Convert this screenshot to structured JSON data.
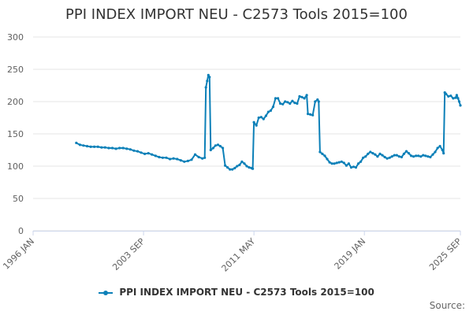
{
  "chart_data": {
    "type": "line",
    "title": "PPI INDEX IMPORT NEU - C2573 Tools 2015=100",
    "xlabel": "",
    "ylabel": "",
    "x_tick_labels": [
      "1996 JAN",
      "2003 SEP",
      "2011 MAY",
      "2019 JAN",
      "2025 SEP"
    ],
    "x_range": [
      "1996-01",
      "2025-09"
    ],
    "ylim": [
      0,
      300
    ],
    "y_ticks": [
      0,
      50,
      100,
      150,
      200,
      250,
      300
    ],
    "grid": true,
    "legend_position": "bottom",
    "source_label": "Source:",
    "colors": {
      "series": "#0c80b8",
      "grid": "#e6e6e6"
    },
    "series": [
      {
        "name": "PPI INDEX IMPORT NEU - C2573 Tools 2015=100",
        "points": [
          [
            "1999-01",
            136
          ],
          [
            "1999-04",
            133
          ],
          [
            "1999-07",
            132
          ],
          [
            "1999-10",
            131
          ],
          [
            "2000-01",
            130
          ],
          [
            "2000-04",
            130
          ],
          [
            "2000-07",
            130
          ],
          [
            "2000-10",
            129
          ],
          [
            "2001-01",
            129
          ],
          [
            "2001-04",
            128
          ],
          [
            "2001-07",
            128
          ],
          [
            "2001-10",
            127
          ],
          [
            "2002-01",
            128
          ],
          [
            "2002-04",
            128
          ],
          [
            "2002-07",
            127
          ],
          [
            "2002-10",
            126
          ],
          [
            "2003-01",
            124
          ],
          [
            "2003-04",
            123
          ],
          [
            "2003-07",
            121
          ],
          [
            "2003-10",
            119
          ],
          [
            "2004-01",
            120
          ],
          [
            "2004-04",
            118
          ],
          [
            "2004-07",
            116
          ],
          [
            "2004-10",
            114
          ],
          [
            "2005-01",
            113
          ],
          [
            "2005-04",
            113
          ],
          [
            "2005-07",
            111
          ],
          [
            "2005-10",
            112
          ],
          [
            "2006-01",
            111
          ],
          [
            "2006-04",
            109
          ],
          [
            "2006-07",
            107
          ],
          [
            "2006-10",
            108
          ],
          [
            "2007-01",
            110
          ],
          [
            "2007-04",
            118
          ],
          [
            "2007-07",
            114
          ],
          [
            "2007-10",
            112
          ],
          [
            "2007-12",
            113
          ],
          [
            "2008-01",
            222
          ],
          [
            "2008-02",
            232
          ],
          [
            "2008-03",
            241
          ],
          [
            "2008-04",
            238
          ],
          [
            "2008-05",
            125
          ],
          [
            "2008-07",
            128
          ],
          [
            "2008-09",
            132
          ],
          [
            "2008-11",
            133
          ],
          [
            "2009-01",
            131
          ],
          [
            "2009-03",
            128
          ],
          [
            "2009-05",
            101
          ],
          [
            "2009-07",
            98
          ],
          [
            "2009-09",
            95
          ],
          [
            "2009-11",
            95
          ],
          [
            "2010-01",
            97
          ],
          [
            "2010-03",
            100
          ],
          [
            "2010-05",
            102
          ],
          [
            "2010-07",
            107
          ],
          [
            "2010-09",
            104
          ],
          [
            "2010-11",
            100
          ],
          [
            "2011-01",
            98
          ],
          [
            "2011-03",
            97
          ],
          [
            "2011-04",
            96
          ],
          [
            "2011-05",
            168
          ],
          [
            "2011-07",
            163
          ],
          [
            "2011-09",
            175
          ],
          [
            "2011-11",
            176
          ],
          [
            "2012-01",
            173
          ],
          [
            "2012-03",
            178
          ],
          [
            "2012-05",
            184
          ],
          [
            "2012-07",
            186
          ],
          [
            "2012-09",
            192
          ],
          [
            "2012-11",
            205
          ],
          [
            "2013-01",
            205
          ],
          [
            "2013-03",
            197
          ],
          [
            "2013-05",
            196
          ],
          [
            "2013-07",
            200
          ],
          [
            "2013-09",
            199
          ],
          [
            "2013-11",
            197
          ],
          [
            "2014-01",
            201
          ],
          [
            "2014-03",
            198
          ],
          [
            "2014-05",
            197
          ],
          [
            "2014-07",
            208
          ],
          [
            "2014-09",
            207
          ],
          [
            "2014-11",
            205
          ],
          [
            "2015-01",
            210
          ],
          [
            "2015-02",
            181
          ],
          [
            "2015-04",
            180
          ],
          [
            "2015-06",
            179
          ],
          [
            "2015-08",
            200
          ],
          [
            "2015-10",
            203
          ],
          [
            "2015-11",
            200
          ],
          [
            "2015-12",
            122
          ],
          [
            "2016-02",
            119
          ],
          [
            "2016-04",
            116
          ],
          [
            "2016-06",
            111
          ],
          [
            "2016-08",
            106
          ],
          [
            "2016-10",
            104
          ],
          [
            "2016-12",
            104
          ],
          [
            "2017-02",
            105
          ],
          [
            "2017-04",
            106
          ],
          [
            "2017-06",
            107
          ],
          [
            "2017-08",
            105
          ],
          [
            "2017-10",
            101
          ],
          [
            "2017-12",
            104
          ],
          [
            "2018-02",
            98
          ],
          [
            "2018-04",
            99
          ],
          [
            "2018-06",
            98
          ],
          [
            "2018-08",
            104
          ],
          [
            "2018-10",
            107
          ],
          [
            "2018-12",
            113
          ],
          [
            "2019-02",
            115
          ],
          [
            "2019-04",
            119
          ],
          [
            "2019-06",
            122
          ],
          [
            "2019-08",
            120
          ],
          [
            "2019-10",
            118
          ],
          [
            "2019-12",
            115
          ],
          [
            "2020-02",
            119
          ],
          [
            "2020-04",
            117
          ],
          [
            "2020-06",
            114
          ],
          [
            "2020-08",
            112
          ],
          [
            "2020-10",
            113
          ],
          [
            "2020-12",
            115
          ],
          [
            "2021-02",
            117
          ],
          [
            "2021-04",
            117
          ],
          [
            "2021-06",
            115
          ],
          [
            "2021-08",
            114
          ],
          [
            "2021-10",
            119
          ],
          [
            "2021-12",
            123
          ],
          [
            "2022-02",
            120
          ],
          [
            "2022-04",
            116
          ],
          [
            "2022-06",
            115
          ],
          [
            "2022-08",
            116
          ],
          [
            "2022-10",
            116
          ],
          [
            "2022-12",
            115
          ],
          [
            "2023-02",
            117
          ],
          [
            "2023-04",
            116
          ],
          [
            "2023-06",
            115
          ],
          [
            "2023-08",
            114
          ],
          [
            "2023-10",
            118
          ],
          [
            "2023-12",
            122
          ],
          [
            "2024-02",
            128
          ],
          [
            "2024-04",
            131
          ],
          [
            "2024-06",
            125
          ],
          [
            "2024-07",
            120
          ],
          [
            "2024-08",
            214
          ],
          [
            "2024-09",
            212
          ],
          [
            "2024-11",
            208
          ],
          [
            "2025-01",
            209
          ],
          [
            "2025-03",
            205
          ],
          [
            "2025-05",
            206
          ],
          [
            "2025-06",
            210
          ],
          [
            "2025-07",
            205
          ],
          [
            "2025-08",
            200
          ],
          [
            "2025-09",
            194
          ]
        ]
      }
    ]
  }
}
